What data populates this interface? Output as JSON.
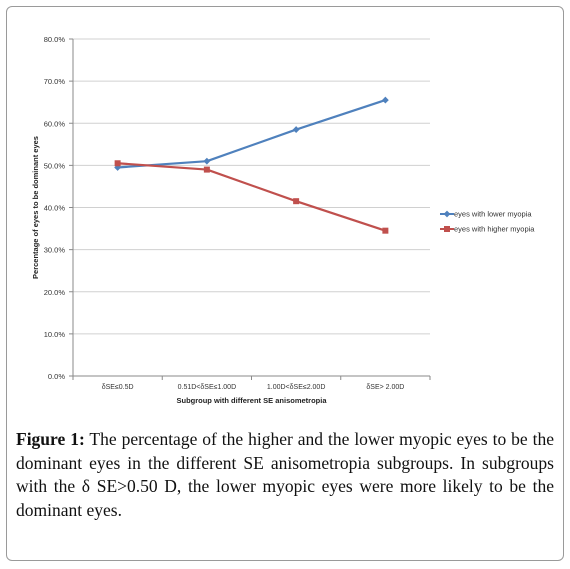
{
  "chart_data": {
    "type": "line",
    "xlabel": "Subgroup with different SE anisometropia",
    "ylabel": "Percentage of eyes to be dominant eyes",
    "categories": [
      "δSE≤0.5D",
      "0.51D<δSE≤1.00D",
      "1.00D<δSE≤2.00D",
      "δSE> 2.00D"
    ],
    "ylim": [
      0,
      80
    ],
    "yticks": [
      "0.0%",
      "10.0%",
      "20.0%",
      "30.0%",
      "40.0%",
      "50.0%",
      "60.0%",
      "70.0%",
      "80.0%"
    ],
    "grid": true,
    "legend_position": "right",
    "series": [
      {
        "name": "eyes with lower myopia",
        "color": "#4f81bd",
        "marker": "diamond",
        "values": [
          49.5,
          51.0,
          58.5,
          65.5
        ]
      },
      {
        "name": "eyes with higher myopia",
        "color": "#c0504d",
        "marker": "square",
        "values": [
          50.5,
          49.0,
          41.5,
          34.5
        ]
      }
    ]
  },
  "caption": {
    "label": "Figure 1:",
    "text": " The percentage of the higher and the lower myopic eyes to be the dominant eyes in the different SE anisometropia subgroups. In subgroups with the δ SE>0.50 D, the lower myopic eyes were more likely to be the dominant eyes."
  }
}
